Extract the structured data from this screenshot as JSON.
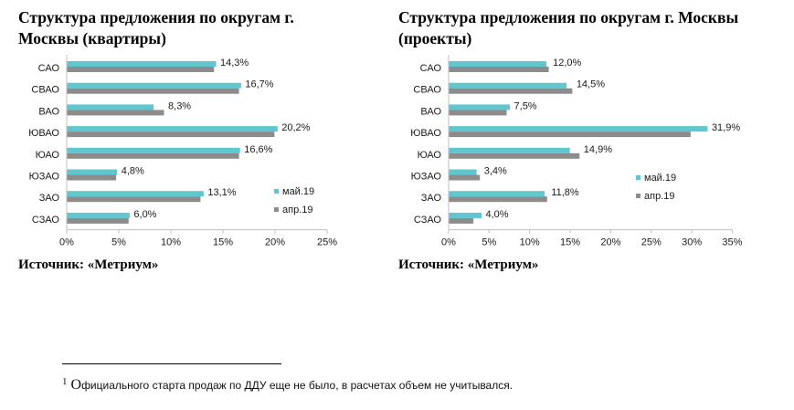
{
  "colors": {
    "may": "#5ec7cf",
    "apr": "#8c8c8c",
    "axis": "#bfbfbf"
  },
  "source_text": "Источник: «Метриум»",
  "footnote": {
    "marker": "1",
    "first_letter": "О",
    "text": "фициального старта продаж по ДДУ еще не было, в расчетах объем не учитывался."
  },
  "chart_data": [
    {
      "type": "bar",
      "orientation": "horizontal",
      "title": "Структура предложения по округам г. Москвы (квартиры)",
      "title_lines": [
        "Структура предложения по округам г.",
        "Москвы (квартиры)"
      ],
      "categories": [
        "САО",
        "СВАО",
        "ВАО",
        "ЮВАО",
        "ЮАО",
        "ЮЗАО",
        "ЗАО",
        "СЗАО"
      ],
      "series": [
        {
          "name": "май.19",
          "values": [
            14.3,
            16.7,
            8.3,
            20.2,
            16.6,
            4.8,
            13.1,
            6.0
          ]
        },
        {
          "name": "апр.19",
          "values": [
            14.1,
            16.5,
            9.3,
            19.9,
            16.5,
            4.7,
            12.8,
            5.9
          ]
        }
      ],
      "data_labels": [
        "14,3%",
        "16,7%",
        "8,3%",
        "20,2%",
        "16,6%",
        "4,8%",
        "13,1%",
        "6,0%"
      ],
      "xlim": [
        0,
        25
      ],
      "xticks": [
        "0%",
        "5%",
        "10%",
        "15%",
        "20%",
        "25%"
      ],
      "grid": false,
      "legend": "right-bottom"
    },
    {
      "type": "bar",
      "orientation": "horizontal",
      "title": "Структура предложения по округам г. Москвы (проекты)",
      "title_lines": [
        "Структура предложения по округам г. Москвы",
        "(проекты)"
      ],
      "categories": [
        "САО",
        "СВАО",
        "ВАО",
        "ЮВАО",
        "ЮАО",
        "ЮЗАО",
        "ЗАО",
        "СЗАО"
      ],
      "series": [
        {
          "name": "май.19",
          "values": [
            12.0,
            14.5,
            7.5,
            31.9,
            14.9,
            3.4,
            11.8,
            4.0
          ]
        },
        {
          "name": "апр.19",
          "values": [
            12.3,
            15.2,
            7.1,
            29.8,
            16.1,
            3.8,
            12.1,
            3.0
          ]
        }
      ],
      "data_labels": [
        "12,0%",
        "14,5%",
        "7,5%",
        "31,9%",
        "14,9%",
        "3,4%",
        "11,8%",
        "4,0%"
      ],
      "xlim": [
        0,
        35
      ],
      "xticks": [
        "0%",
        "5%",
        "10%",
        "15%",
        "20%",
        "25%",
        "30%",
        "35%"
      ],
      "grid": false,
      "legend": "right-bottom"
    }
  ]
}
